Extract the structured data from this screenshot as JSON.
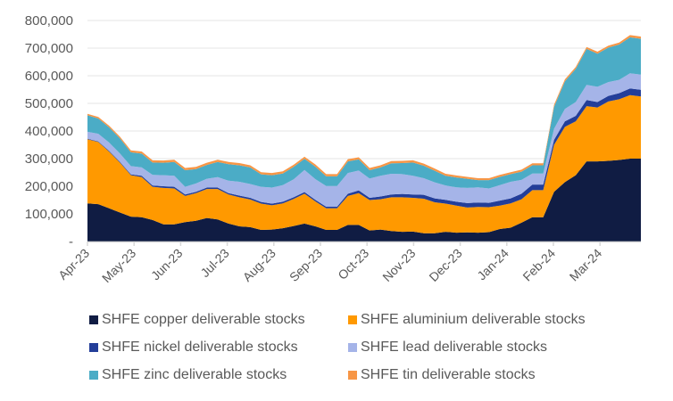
{
  "chart_data": {
    "type": "area",
    "stacked": true,
    "title": "",
    "xlabel": "",
    "ylabel": "",
    "ylim": [
      0,
      800000
    ],
    "yticks": [
      0,
      100000,
      200000,
      300000,
      400000,
      500000,
      600000,
      700000,
      800000
    ],
    "ytick_labels": [
      "-",
      "100,000",
      "200,000",
      "300,000",
      "400,000",
      "500,000",
      "600,000",
      "700,000",
      "800,000"
    ],
    "xtick_labels": [
      "Apr-23",
      "May-23",
      "Jun-23",
      "Jul-23",
      "Aug-23",
      "Sep-23",
      "Oct-23",
      "Nov-23",
      "Dec-23",
      "Jan-24",
      "Feb-24",
      "Mar-24"
    ],
    "grid": "horizontal",
    "legend_position": "bottom",
    "x_weeks": 52,
    "series": [
      {
        "name": "SHFE copper deliverable stocks",
        "color": "#101C43",
        "values": [
          138000,
          135000,
          120000,
          105000,
          90000,
          88000,
          78000,
          62000,
          62000,
          70000,
          75000,
          85000,
          80000,
          65000,
          55000,
          52000,
          42000,
          43000,
          48000,
          56000,
          65000,
          55000,
          42000,
          42000,
          60000,
          60000,
          40000,
          43000,
          38000,
          35000,
          36000,
          30000,
          30000,
          35000,
          32000,
          33000,
          32000,
          34000,
          45000,
          50000,
          68000,
          88000,
          88000,
          180000,
          215000,
          240000,
          290000,
          290000,
          292000,
          295000,
          300000,
          300000
        ]
      },
      {
        "name": "SHFE aluminium deliverable stocks",
        "color": "#FF9900",
        "values": [
          232000,
          225000,
          205000,
          180000,
          150000,
          145000,
          120000,
          132000,
          130000,
          95000,
          100000,
          105000,
          110000,
          105000,
          105000,
          100000,
          95000,
          88000,
          90000,
          98000,
          108000,
          90000,
          78000,
          78000,
          105000,
          115000,
          110000,
          110000,
          122000,
          125000,
          122000,
          125000,
          112000,
          102000,
          98000,
          90000,
          93000,
          90000,
          85000,
          88000,
          85000,
          98000,
          98000,
          170000,
          200000,
          195000,
          200000,
          195000,
          215000,
          220000,
          230000,
          225000
        ]
      },
      {
        "name": "SHFE nickel deliverable stocks",
        "color": "#233E99",
        "values": [
          2000,
          2000,
          3000,
          3000,
          3000,
          5000,
          5000,
          6000,
          6000,
          5000,
          5000,
          5000,
          5000,
          5000,
          6000,
          6000,
          6000,
          6000,
          6000,
          6000,
          6000,
          6000,
          6000,
          6000,
          8000,
          10000,
          8000,
          10000,
          10000,
          12000,
          12000,
          14000,
          14000,
          14000,
          14000,
          16000,
          16000,
          16000,
          18000,
          18000,
          20000,
          20000,
          20000,
          18000,
          20000,
          20000,
          22000,
          20000,
          20000,
          22000,
          24000,
          24000
        ]
      },
      {
        "name": "SHFE lead deliverable stocks",
        "color": "#A5B4E8",
        "values": [
          25000,
          28000,
          30000,
          30000,
          30000,
          30000,
          38000,
          40000,
          40000,
          28000,
          30000,
          32000,
          38000,
          45000,
          50000,
          50000,
          55000,
          58000,
          60000,
          65000,
          80000,
          75000,
          75000,
          75000,
          75000,
          72000,
          70000,
          75000,
          75000,
          72000,
          68000,
          60000,
          58000,
          52000,
          52000,
          55000,
          55000,
          52000,
          56000,
          60000,
          50000,
          40000,
          40000,
          40000,
          45000,
          50000,
          55000,
          55000,
          50000,
          48000,
          55000,
          55000
        ]
      },
      {
        "name": "SHFE zinc deliverable stocks",
        "color": "#4BACC6",
        "values": [
          60000,
          55000,
          55000,
          55000,
          50000,
          50000,
          45000,
          45000,
          50000,
          60000,
          52000,
          50000,
          55000,
          60000,
          60000,
          60000,
          45000,
          45000,
          42000,
          45000,
          40000,
          45000,
          35000,
          35000,
          42000,
          40000,
          30000,
          30000,
          38000,
          40000,
          48000,
          45000,
          42000,
          35000,
          36000,
          33000,
          26000,
          30000,
          30000,
          28000,
          30000,
          30000,
          30000,
          80000,
          100000,
          120000,
          130000,
          120000,
          125000,
          128000,
          130000,
          130000
        ]
      },
      {
        "name": "SHFE tin deliverable stocks",
        "color": "#F79646",
        "values": [
          5000,
          6000,
          6000,
          6000,
          7000,
          8000,
          8000,
          8000,
          8000,
          8000,
          8000,
          8000,
          8000,
          8000,
          8000,
          8000,
          8000,
          8000,
          8000,
          8000,
          8000,
          8000,
          8000,
          8000,
          8000,
          8000,
          8000,
          8000,
          8000,
          8000,
          8000,
          8000,
          8000,
          7000,
          7000,
          7000,
          7000,
          7000,
          7000,
          7000,
          7000,
          7000,
          7000,
          7000,
          7000,
          7000,
          7000,
          7000,
          7000,
          7000,
          8000,
          8000
        ]
      }
    ]
  }
}
